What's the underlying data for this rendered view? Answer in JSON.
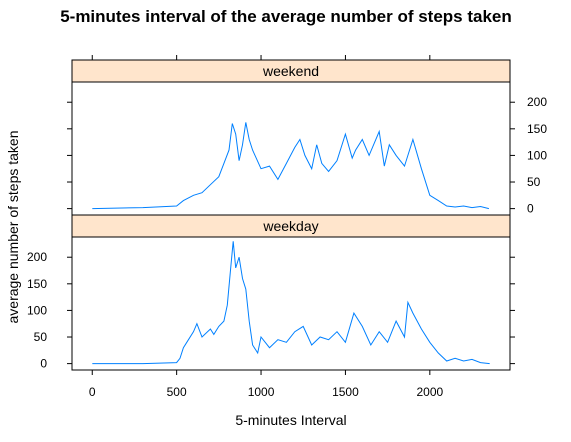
{
  "chart_data": {
    "type": "line",
    "title": "5-minutes interval of the average number of steps taken",
    "xlabel": "5-minutes Interval",
    "ylabel": "average number of steps taken",
    "xlim": [
      -120,
      2475
    ],
    "ylim": [
      -12,
      238
    ],
    "x_ticks": [
      0,
      500,
      1000,
      1500,
      2000
    ],
    "y_ticks": [
      0,
      50,
      100,
      150,
      200
    ],
    "line_color": "#0080FF",
    "strip_color": "#FFE5CC",
    "panels": [
      {
        "strip": "weekend",
        "y_axis_side": "right",
        "x": [
          0,
          300,
          500,
          540,
          600,
          650,
          700,
          750,
          780,
          810,
          830,
          850,
          870,
          890,
          910,
          930,
          950,
          1000,
          1050,
          1100,
          1150,
          1200,
          1230,
          1260,
          1300,
          1330,
          1360,
          1400,
          1450,
          1500,
          1540,
          1560,
          1600,
          1640,
          1700,
          1730,
          1760,
          1800,
          1850,
          1900,
          1950,
          2000,
          2050,
          2100,
          2150,
          2200,
          2250,
          2300,
          2350
        ],
        "y": [
          0,
          2,
          5,
          15,
          25,
          30,
          45,
          60,
          85,
          110,
          160,
          140,
          90,
          120,
          162,
          130,
          110,
          75,
          80,
          55,
          85,
          115,
          130,
          100,
          75,
          120,
          85,
          70,
          90,
          140,
          95,
          110,
          130,
          100,
          145,
          80,
          120,
          100,
          80,
          130,
          75,
          25,
          15,
          5,
          3,
          5,
          2,
          4,
          0
        ]
      },
      {
        "strip": "weekday",
        "y_axis_side": "left",
        "x": [
          0,
          300,
          500,
          520,
          540,
          560,
          600,
          620,
          650,
          700,
          720,
          750,
          780,
          800,
          820,
          835,
          850,
          870,
          890,
          910,
          930,
          950,
          980,
          1000,
          1050,
          1100,
          1150,
          1200,
          1250,
          1300,
          1350,
          1400,
          1450,
          1500,
          1550,
          1600,
          1650,
          1700,
          1750,
          1800,
          1850,
          1870,
          1900,
          1950,
          2000,
          2050,
          2100,
          2150,
          2200,
          2250,
          2300,
          2355
        ],
        "y": [
          0,
          0,
          2,
          10,
          30,
          40,
          60,
          75,
          50,
          65,
          55,
          70,
          80,
          110,
          180,
          230,
          180,
          200,
          160,
          140,
          80,
          35,
          20,
          50,
          30,
          45,
          40,
          60,
          70,
          35,
          50,
          45,
          60,
          40,
          95,
          70,
          35,
          60,
          40,
          80,
          50,
          115,
          95,
          65,
          40,
          20,
          5,
          10,
          5,
          8,
          2,
          0
        ]
      }
    ]
  }
}
